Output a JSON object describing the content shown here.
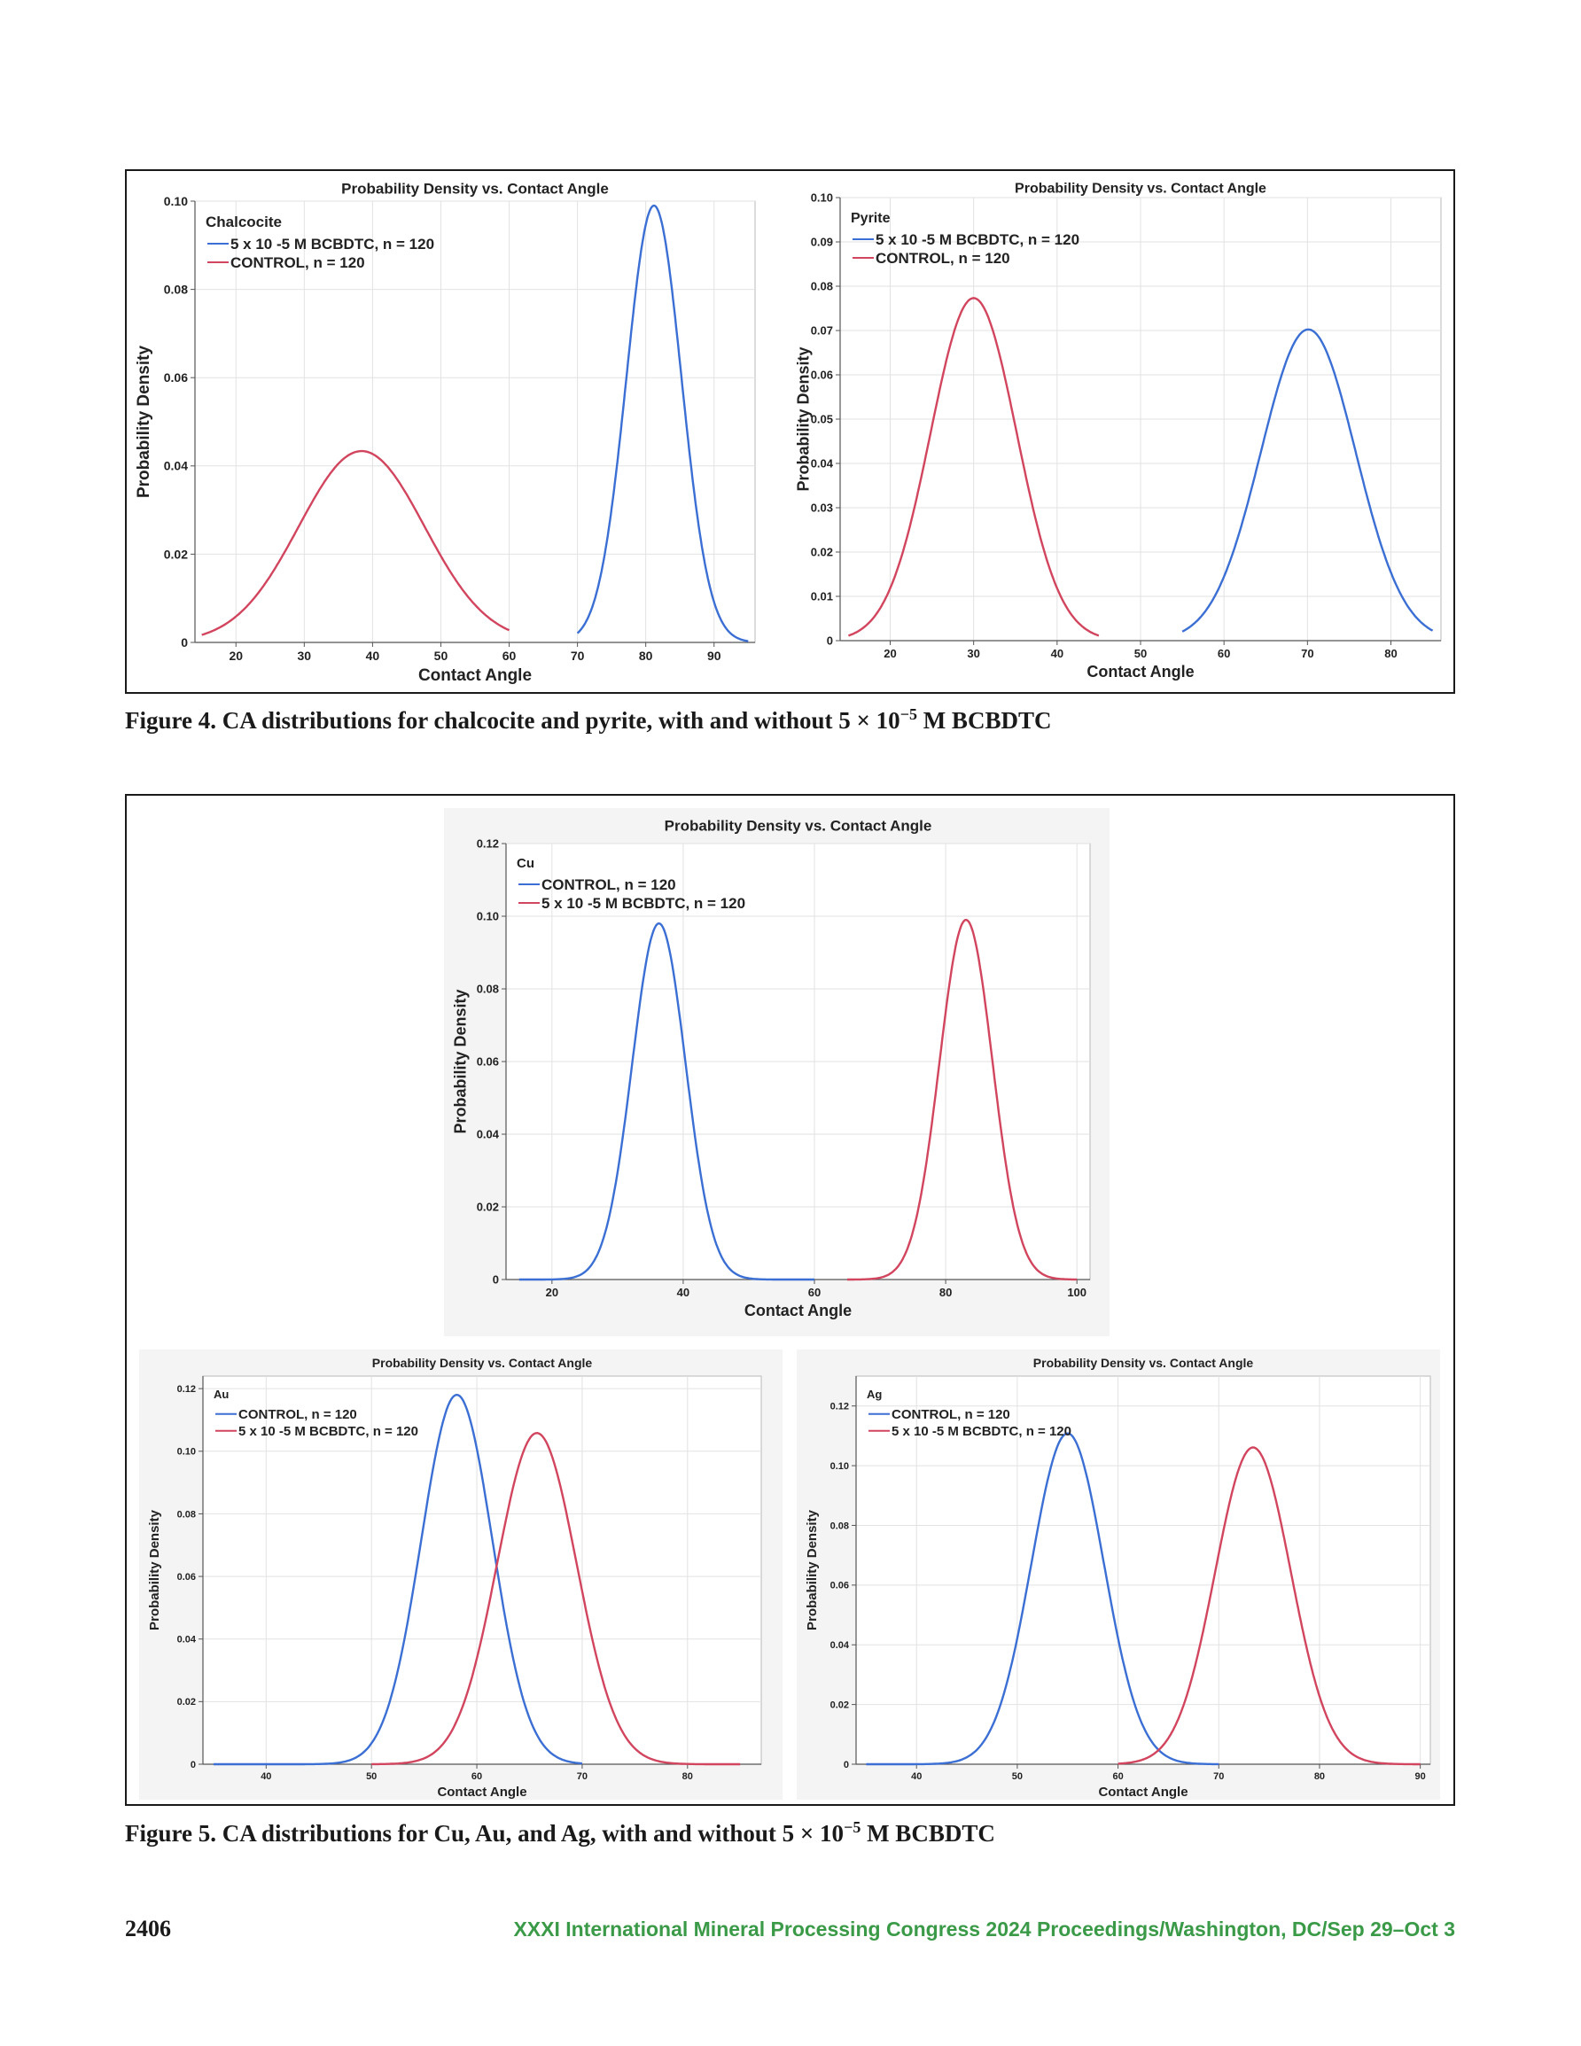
{
  "colors": {
    "blue": "#3b6fd4",
    "red": "#d2455e",
    "grid": "#e2e2e2",
    "frame": "#1a1a1a"
  },
  "figure4": {
    "caption_prefix": "Figure 4. CA distributions for chalcocite and pyrite, with and without 5 × 10",
    "caption_exp": "−5",
    "caption_suffix": " M BCBDTC"
  },
  "figure5": {
    "caption_prefix": "Figure 5. CA distributions for Cu, Au, and Ag, with and without 5 × 10",
    "caption_exp": "−5",
    "caption_suffix": " M BCBDTC"
  },
  "footer": {
    "page_number": "2406",
    "proceedings": "XXXI International Mineral Processing Congress 2024 Proceedings/Washington, DC/Sep 29–Oct 3"
  },
  "chart_data": [
    {
      "id": "chalcocite",
      "type": "line",
      "title": "Probability Density vs. Contact Angle",
      "xlabel": "Contact Angle",
      "ylabel": "Probability Density",
      "legend_title": "Chalcocite",
      "legend_position": "top-left",
      "grid": true,
      "xlim": [
        14,
        96
      ],
      "ylim": [
        0,
        0.1
      ],
      "xticks": [
        20,
        30,
        40,
        50,
        60,
        70,
        80,
        90
      ],
      "yticks": [
        0,
        0.02,
        0.04,
        0.06,
        0.08,
        0.1
      ],
      "ytick_labels": [
        "0",
        "0.02",
        "0.04",
        "0.06",
        "0.08",
        "0.10"
      ],
      "series": [
        {
          "name": "5 x 10 -5 M BCBDTC, n = 120",
          "color": "blue",
          "mean": 81.2,
          "sd": 4.03,
          "x_range": [
            70,
            95
          ]
        },
        {
          "name": "CONTROL, n = 120",
          "color": "red",
          "mean": 38.4,
          "sd": 9.2,
          "x_range": [
            15,
            60
          ]
        }
      ]
    },
    {
      "id": "pyrite",
      "type": "line",
      "title": "Probability Density vs. Contact Angle",
      "xlabel": "Contact Angle",
      "ylabel": "Probability Density",
      "legend_title": "Pyrite",
      "legend_position": "top-left",
      "grid": true,
      "xlim": [
        14,
        86
      ],
      "ylim": [
        0,
        0.1
      ],
      "xticks": [
        20,
        30,
        40,
        50,
        60,
        70,
        80
      ],
      "yticks": [
        0,
        0.01,
        0.02,
        0.03,
        0.04,
        0.05,
        0.06,
        0.07,
        0.08,
        0.09,
        0.1
      ],
      "ytick_labels": [
        "0",
        "0.01",
        "0.02",
        "0.03",
        "0.04",
        "0.05",
        "0.06",
        "0.07",
        "0.08",
        "0.09",
        "0.10"
      ],
      "series": [
        {
          "name": "5 x 10 -5 M BCBDTC, n = 120",
          "color": "blue",
          "mean": 70.1,
          "sd": 5.68,
          "x_range": [
            55,
            85
          ]
        },
        {
          "name": "CONTROL, n = 120",
          "color": "red",
          "mean": 30.0,
          "sd": 5.16,
          "x_range": [
            15,
            45
          ]
        }
      ]
    },
    {
      "id": "cu",
      "type": "line",
      "title": "Probability Density vs. Contact Angle",
      "xlabel": "Contact Angle",
      "ylabel": "Probability Density",
      "legend_title": "Cu",
      "legend_position": "top-left",
      "grid": true,
      "xlim": [
        13,
        102
      ],
      "ylim": [
        0,
        0.12
      ],
      "xticks": [
        20,
        40,
        60,
        80,
        100
      ],
      "yticks": [
        0,
        0.02,
        0.04,
        0.06,
        0.08,
        0.1,
        0.12
      ],
      "ytick_labels": [
        "0",
        "0.02",
        "0.04",
        "0.06",
        "0.08",
        "0.10",
        "0.12"
      ],
      "series": [
        {
          "name": "CONTROL, n = 120",
          "color": "blue",
          "mean": 36.3,
          "sd": 4.07,
          "x_range": [
            15,
            60
          ]
        },
        {
          "name": "5 x 10 -5 M BCBDTC, n = 120",
          "color": "red",
          "mean": 83.1,
          "sd": 4.03,
          "x_range": [
            65,
            100
          ]
        }
      ]
    },
    {
      "id": "au",
      "type": "line",
      "title": "Probability Density vs. Contact Angle",
      "xlabel": "Contact Angle",
      "ylabel": "Probability Density",
      "legend_title": "Au",
      "legend_position": "top-left",
      "grid": true,
      "xlim": [
        34,
        87
      ],
      "ylim": [
        0,
        0.124
      ],
      "xticks": [
        40,
        50,
        60,
        70,
        80
      ],
      "yticks": [
        0,
        0.02,
        0.04,
        0.06,
        0.08,
        0.1,
        0.12
      ],
      "ytick_labels": [
        "0",
        "0.02",
        "0.04",
        "0.06",
        "0.08",
        "0.10",
        "0.12"
      ],
      "series": [
        {
          "name": "CONTROL, n = 120",
          "color": "blue",
          "mean": 58.1,
          "sd": 3.38,
          "x_range": [
            35,
            70
          ]
        },
        {
          "name": "5 x 10 -5 M BCBDTC, n = 120",
          "color": "red",
          "mean": 65.7,
          "sd": 3.77,
          "x_range": [
            50,
            85
          ]
        }
      ]
    },
    {
      "id": "ag",
      "type": "line",
      "title": "Probability Density vs. Contact Angle",
      "xlabel": "Contact Angle",
      "ylabel": "Probability Density",
      "legend_title": "Ag",
      "legend_position": "top-left",
      "grid": true,
      "xlim": [
        34,
        91
      ],
      "ylim": [
        0,
        0.13
      ],
      "xticks": [
        40,
        50,
        60,
        70,
        80,
        90
      ],
      "yticks": [
        0,
        0.02,
        0.04,
        0.06,
        0.08,
        0.1,
        0.12
      ],
      "ytick_labels": [
        "0",
        "0.02",
        "0.04",
        "0.06",
        "0.08",
        "0.10",
        "0.12"
      ],
      "series": [
        {
          "name": "CONTROL, n = 120",
          "color": "blue",
          "mean": 55.0,
          "sd": 3.6,
          "x_range": [
            35,
            70
          ]
        },
        {
          "name": "5 x 10 -5 M BCBDTC, n = 120",
          "color": "red",
          "mean": 73.4,
          "sd": 3.76,
          "x_range": [
            60,
            90
          ]
        }
      ]
    }
  ]
}
